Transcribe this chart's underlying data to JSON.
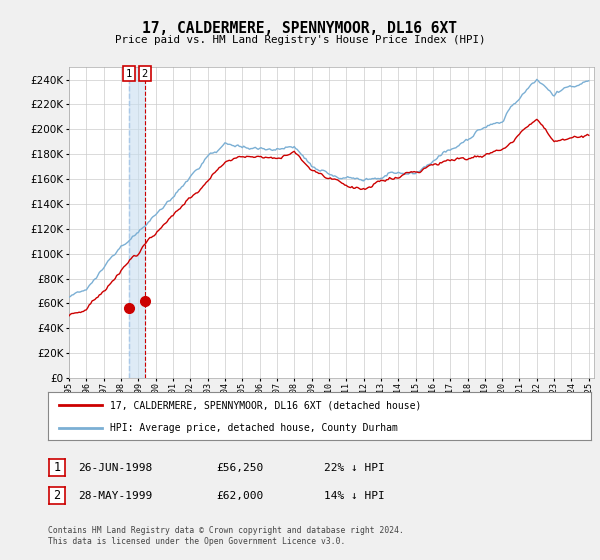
{
  "title": "17, CALDERMERE, SPENNYMOOR, DL16 6XT",
  "subtitle": "Price paid vs. HM Land Registry's House Price Index (HPI)",
  "legend_line1": "17, CALDERMERE, SPENNYMOOR, DL16 6XT (detached house)",
  "legend_line2": "HPI: Average price, detached house, County Durham",
  "transaction1_date": "26-JUN-1998",
  "transaction1_price": "£56,250",
  "transaction1_hpi": "22% ↓ HPI",
  "transaction2_date": "28-MAY-1999",
  "transaction2_price": "£62,000",
  "transaction2_hpi": "14% ↓ HPI",
  "footer": "Contains HM Land Registry data © Crown copyright and database right 2024.\nThis data is licensed under the Open Government Licence v3.0.",
  "hpi_color": "#7bafd4",
  "price_color": "#cc0000",
  "vline1_color": "#aac8e8",
  "vline2_color": "#cc0000",
  "shade_color": "#c8dff0",
  "bg_color": "#f0f0f0",
  "plot_bg": "#ffffff",
  "grid_color": "#cccccc",
  "ylim": [
    0,
    250000
  ],
  "yticks": [
    0,
    20000,
    40000,
    60000,
    80000,
    100000,
    120000,
    140000,
    160000,
    180000,
    200000,
    220000,
    240000
  ]
}
